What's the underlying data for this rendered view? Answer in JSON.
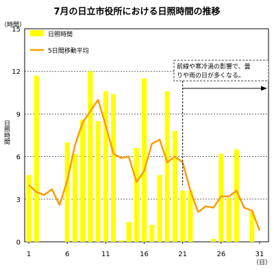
{
  "chart_data": {
    "type": "bar",
    "title": "7月の日立市役所における日照時間の推移",
    "y_unit_label": "（時間）",
    "ylabel": "日照時間",
    "x_unit_label": "（日）",
    "ylim": [
      0,
      15
    ],
    "yticks": [
      0,
      3,
      6,
      9,
      12,
      15
    ],
    "x_tick_labels": [
      1,
      6,
      11,
      16,
      21,
      26,
      31
    ],
    "xlim": [
      1,
      31
    ],
    "grid": "horizontal dashed",
    "legend_position": "top-left",
    "series": [
      {
        "name": "日照時間",
        "type": "bar",
        "color": "#FFFF00",
        "x": [
          1,
          2,
          3,
          4,
          5,
          6,
          7,
          8,
          9,
          10,
          11,
          12,
          13,
          14,
          15,
          16,
          17,
          18,
          19,
          20,
          21,
          22,
          23,
          24,
          25,
          26,
          27,
          28,
          29,
          30,
          31
        ],
        "values": [
          4.7,
          11.7,
          0,
          0,
          0,
          7.0,
          6.2,
          8.6,
          12.0,
          8.5,
          10.6,
          10.4,
          0.1,
          1.4,
          6.6,
          11.5,
          1.2,
          4.7,
          10.6,
          7.8,
          3.6,
          3.6,
          0,
          0,
          0.2,
          6.2,
          3.1,
          6.5,
          0,
          2.1,
          0
        ]
      },
      {
        "name": "5日間移動平均",
        "type": "line",
        "color": "#FF9900",
        "x": [
          1,
          2,
          3,
          4,
          5,
          6,
          7,
          8,
          9,
          10,
          11,
          12,
          13,
          14,
          15,
          16,
          17,
          18,
          19,
          20,
          21,
          22,
          23,
          24,
          25,
          26,
          27,
          28,
          29,
          30,
          31
        ],
        "values": [
          4.0,
          3.5,
          3.3,
          3.7,
          2.6,
          4.3,
          6.8,
          8.4,
          9.2,
          10.0,
          8.2,
          6.2,
          5.9,
          6.0,
          4.2,
          5.0,
          6.9,
          7.2,
          5.6,
          6.0,
          5.6,
          3.6,
          2.1,
          2.5,
          2.4,
          3.2,
          3.2,
          3.6,
          2.4,
          2.2,
          0.8
        ]
      }
    ],
    "annotation": {
      "text_line1": "前線や寒冷渦の影響で、曇",
      "text_line2": "りや雨の日が多くなる。",
      "arrow_from_day": 21,
      "arrow_direction": "right"
    }
  }
}
